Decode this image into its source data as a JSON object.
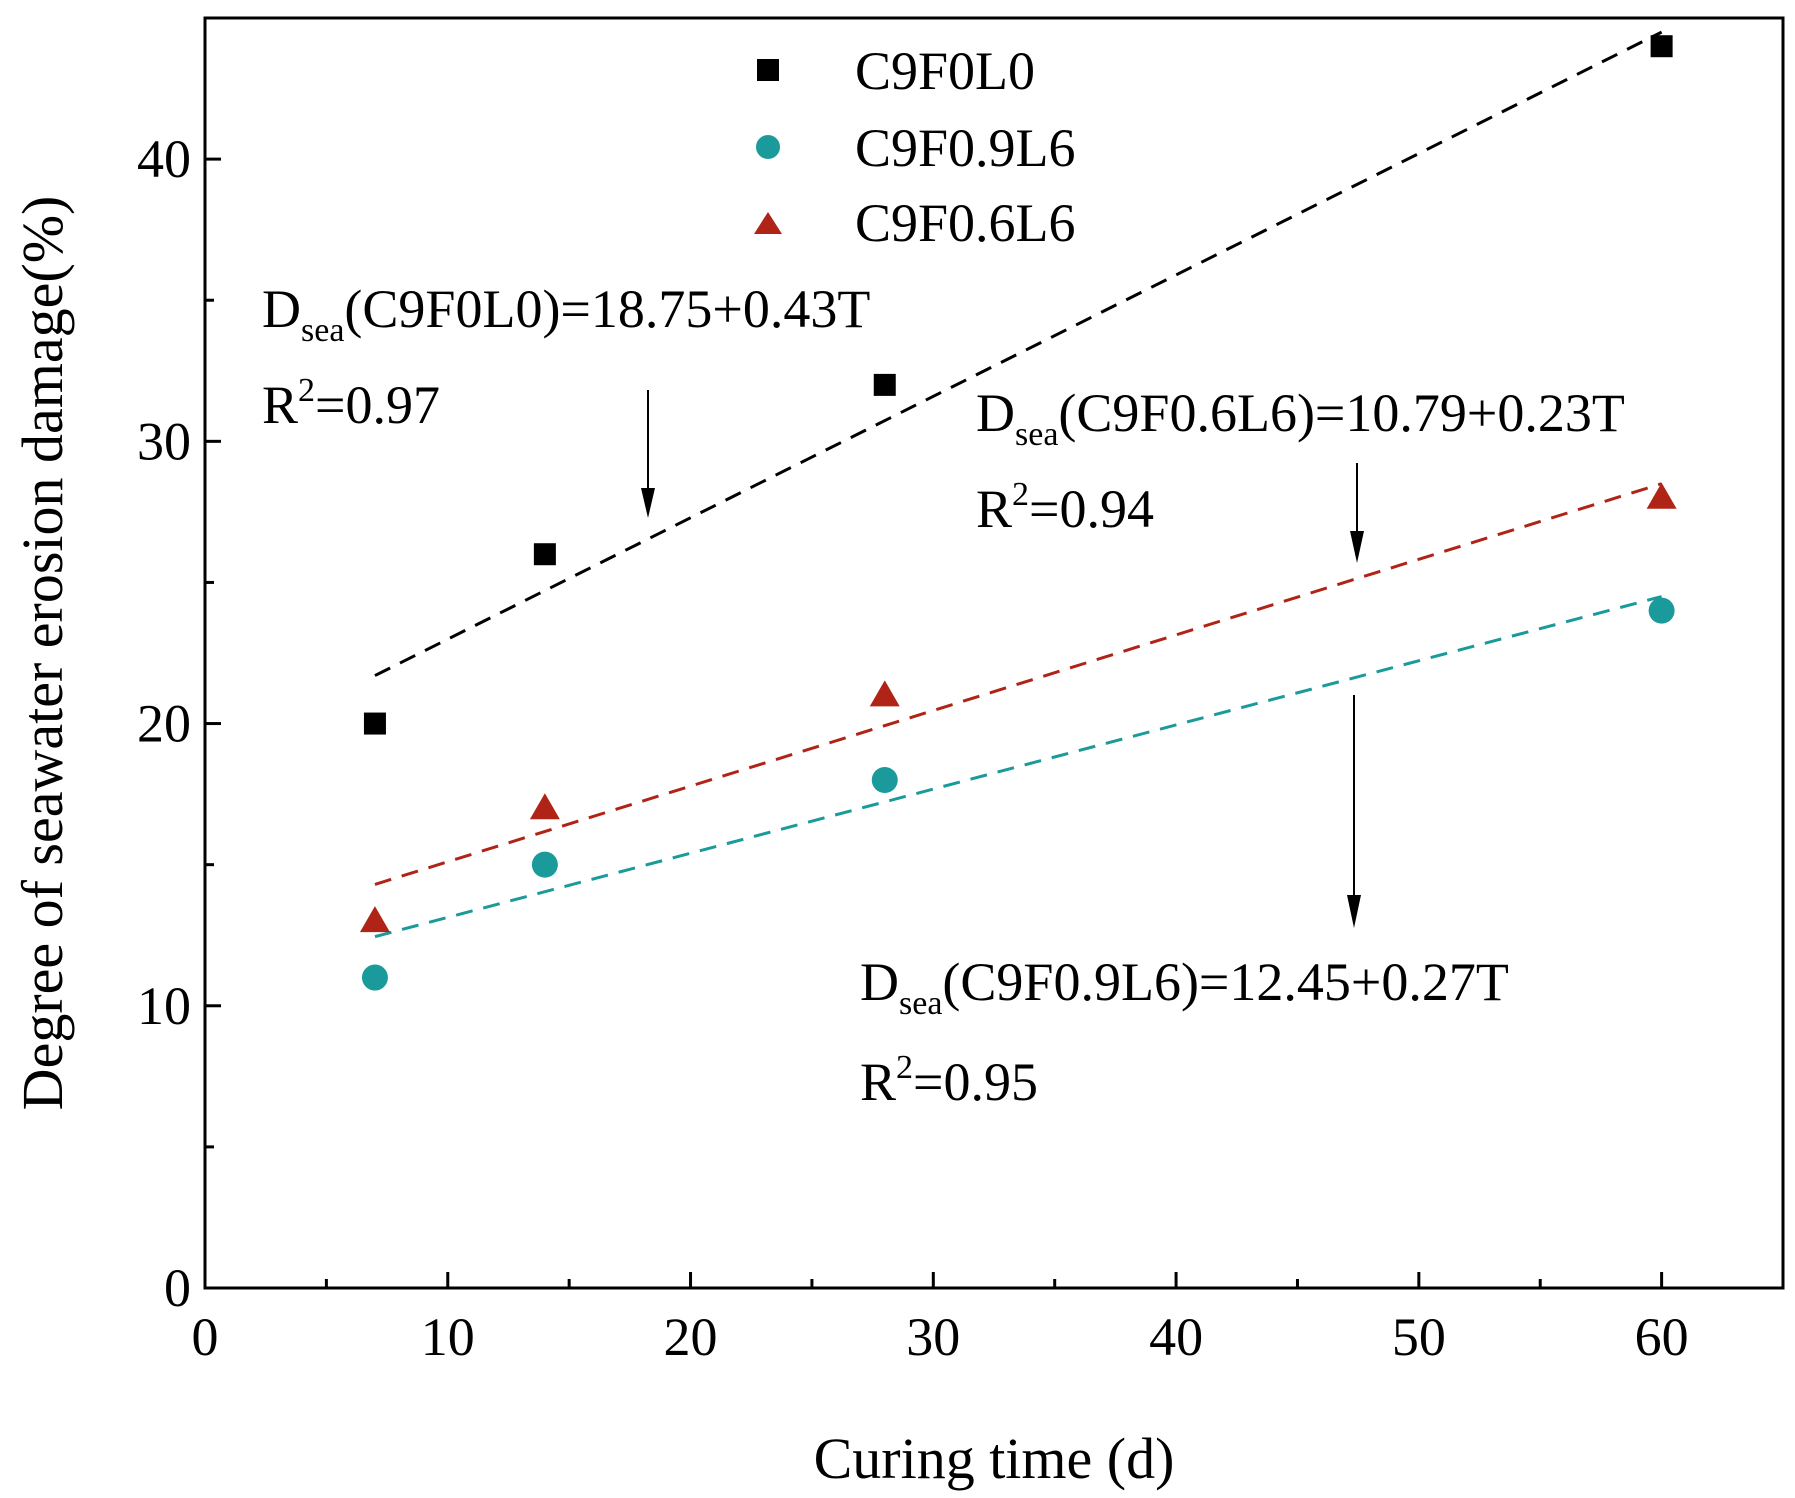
{
  "chart_data": {
    "type": "scatter",
    "xlabel": "Curing time (d)",
    "ylabel": "Degree of seawater erosion damage(%)",
    "xlim": [
      0,
      65
    ],
    "ylim": [
      0,
      45
    ],
    "x_ticks": [
      0,
      10,
      20,
      30,
      40,
      50,
      60
    ],
    "y_ticks": [
      0,
      10,
      20,
      30,
      40
    ],
    "x_tick_labels": [
      "0",
      "10",
      "20",
      "30",
      "40",
      "50",
      "60"
    ],
    "y_tick_labels": [
      "0",
      "10",
      "20",
      "30",
      "40"
    ],
    "legend_position": "top-center",
    "series": [
      {
        "name": "C9F0L0",
        "marker": "square",
        "color": "#000000",
        "x": [
          7,
          14,
          28,
          60
        ],
        "y": [
          20,
          26,
          32,
          44
        ],
        "fit": {
          "intercept": 18.75,
          "slope": 0.43,
          "x_range": [
            7,
            60
          ]
        }
      },
      {
        "name": "C9F0.9L6",
        "marker": "circle",
        "color": "#1a9a9a",
        "x": [
          7,
          14,
          28,
          60
        ],
        "y": [
          11,
          15,
          18,
          24
        ],
        "fit": {
          "intercept": 12.45,
          "slope": 0.27,
          "x_range": [
            7,
            60
          ]
        }
      },
      {
        "name": "C9F0.6L6",
        "marker": "triangle",
        "color": "#b02418",
        "x": [
          7,
          14,
          28,
          60
        ],
        "y": [
          13,
          17,
          21,
          28
        ],
        "fit": {
          "intercept": 10.79,
          "slope": 0.23,
          "x_range": [
            7,
            60
          ]
        }
      }
    ],
    "annotations": [
      {
        "prefix": "D",
        "sub": "sea",
        "text": "(C9F0L0)=18.75+0.43T",
        "r2_prefix": "R",
        "r2_sup": "2",
        "r2_text": "=0.97"
      },
      {
        "prefix": "D",
        "sub": "sea",
        "text": "(C9F0.6L6)=10.79+0.23T",
        "r2_prefix": "R",
        "r2_sup": "2",
        "r2_text": "=0.94"
      },
      {
        "prefix": "D",
        "sub": "sea",
        "text": "(C9F0.9L6)=12.45+0.27T",
        "r2_prefix": "R",
        "r2_sup": "2",
        "r2_text": "=0.95"
      }
    ]
  }
}
